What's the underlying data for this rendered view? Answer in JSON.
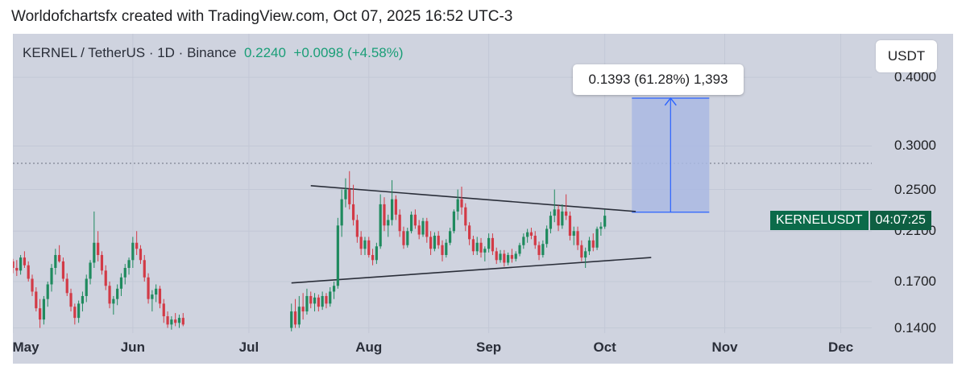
{
  "header": {
    "text": "Worldofchartsfx created with TradingView.com, Oct 07, 2025 16:52 UTC-3"
  },
  "legend": {
    "symbol": "KERNEL / TetherUS · 1D · Binance",
    "last": "0.2240",
    "change": "+0.0098 (+4.58%)"
  },
  "unit": "USDT",
  "measure": {
    "label": "0.1393 (61.28%) 1,393",
    "from": 0.2273,
    "to": 0.3666
  },
  "symbol_badge": {
    "ticker": "KERNELUSDT",
    "countdown": "04:07:25"
  },
  "colors": {
    "up": "#1f8a5e",
    "down": "#d23a46",
    "measure_fill": "#aab8e3",
    "measure_line": "#2962ff",
    "trendline": "#2a2e39",
    "background": "#cfd3df"
  },
  "chart_data": {
    "type": "candlestick",
    "interval": "1D",
    "scale": "log",
    "y_ticks": [
      "0.1400",
      "0.1700",
      "0.2100",
      "0.2500",
      "0.3000",
      "0.4000"
    ],
    "y_tick_values": [
      0.14,
      0.17,
      0.21,
      0.25,
      0.3,
      0.4
    ],
    "x_ticks": [
      "May",
      "Jun",
      "Jul",
      "Aug",
      "Sep",
      "Oct",
      "Nov",
      "Dec"
    ],
    "x_tick_dates": [
      "2025-05-01",
      "2025-06-01",
      "2025-07-01",
      "2025-08-01",
      "2025-09-01",
      "2025-10-01",
      "2025-11-01",
      "2025-12-01"
    ],
    "date_range": [
      "2025-05-01",
      "2025-12-09"
    ],
    "ylim": [
      0.137,
      0.48
    ],
    "dotted_level": 0.279,
    "trendlines": [
      {
        "name": "upper",
        "from": [
          "2025-07-17",
          0.254
        ],
        "to": [
          "2025-10-09",
          0.228
        ]
      },
      {
        "name": "lower",
        "from": [
          "2025-07-12",
          0.169
        ],
        "to": [
          "2025-10-13",
          0.188
        ]
      }
    ],
    "series": [
      {
        "segment": 1,
        "start": "2025-05-01",
        "ohlc": [
          [
            0.185,
            0.187,
            0.176,
            0.18
          ],
          [
            0.18,
            0.186,
            0.174,
            0.178
          ],
          [
            0.178,
            0.19,
            0.175,
            0.188
          ],
          [
            0.188,
            0.193,
            0.18,
            0.182
          ],
          [
            0.182,
            0.185,
            0.17,
            0.172
          ],
          [
            0.172,
            0.175,
            0.16,
            0.163
          ],
          [
            0.163,
            0.166,
            0.15,
            0.152
          ],
          [
            0.152,
            0.158,
            0.14,
            0.145
          ],
          [
            0.145,
            0.16,
            0.142,
            0.158
          ],
          [
            0.158,
            0.17,
            0.153,
            0.168
          ],
          [
            0.168,
            0.183,
            0.163,
            0.18
          ],
          [
            0.18,
            0.195,
            0.175,
            0.19
          ],
          [
            0.19,
            0.198,
            0.184,
            0.185
          ],
          [
            0.185,
            0.188,
            0.17,
            0.172
          ],
          [
            0.172,
            0.176,
            0.16,
            0.162
          ],
          [
            0.162,
            0.165,
            0.15,
            0.153
          ],
          [
            0.153,
            0.155,
            0.142,
            0.146
          ],
          [
            0.146,
            0.157,
            0.143,
            0.155
          ],
          [
            0.155,
            0.163,
            0.15,
            0.16
          ],
          [
            0.16,
            0.175,
            0.156,
            0.172
          ],
          [
            0.172,
            0.186,
            0.168,
            0.184
          ],
          [
            0.184,
            0.228,
            0.18,
            0.2
          ],
          [
            0.2,
            0.21,
            0.185,
            0.19
          ],
          [
            0.19,
            0.193,
            0.175,
            0.178
          ],
          [
            0.178,
            0.182,
            0.164,
            0.167
          ],
          [
            0.167,
            0.17,
            0.152,
            0.155
          ],
          [
            0.155,
            0.16,
            0.148,
            0.158
          ],
          [
            0.158,
            0.168,
            0.154,
            0.165
          ],
          [
            0.165,
            0.176,
            0.16,
            0.173
          ],
          [
            0.173,
            0.183,
            0.168,
            0.18
          ],
          [
            0.18,
            0.188,
            0.175,
            0.186
          ],
          [
            0.186,
            0.205,
            0.18,
            0.2
          ],
          [
            0.2,
            0.21,
            0.19,
            0.195
          ],
          [
            0.195,
            0.198,
            0.183,
            0.186
          ],
          [
            0.186,
            0.19,
            0.17,
            0.173
          ],
          [
            0.173,
            0.176,
            0.155,
            0.158
          ],
          [
            0.158,
            0.164,
            0.15,
            0.161
          ],
          [
            0.161,
            0.168,
            0.156,
            0.165
          ],
          [
            0.165,
            0.167,
            0.152,
            0.155
          ],
          [
            0.155,
            0.158,
            0.143,
            0.147
          ],
          [
            0.147,
            0.15,
            0.14,
            0.142
          ],
          [
            0.142,
            0.147,
            0.139,
            0.145
          ],
          [
            0.145,
            0.149,
            0.141,
            0.143
          ],
          [
            0.143,
            0.148,
            0.14,
            0.146
          ],
          [
            0.146,
            0.149,
            0.141,
            0.142
          ]
        ]
      },
      {
        "segment": 2,
        "start": "2025-07-12",
        "ohlc": [
          [
            0.14,
            0.155,
            0.138,
            0.15
          ],
          [
            0.15,
            0.158,
            0.14,
            0.142
          ],
          [
            0.142,
            0.16,
            0.14,
            0.153
          ],
          [
            0.153,
            0.162,
            0.145,
            0.15
          ],
          [
            0.15,
            0.165,
            0.148,
            0.16
          ],
          [
            0.16,
            0.163,
            0.152,
            0.155
          ],
          [
            0.155,
            0.162,
            0.15,
            0.159
          ],
          [
            0.159,
            0.161,
            0.15,
            0.153
          ],
          [
            0.153,
            0.163,
            0.151,
            0.16
          ],
          [
            0.16,
            0.162,
            0.152,
            0.155
          ],
          [
            0.155,
            0.166,
            0.153,
            0.163
          ],
          [
            0.163,
            0.17,
            0.158,
            0.167
          ],
          [
            0.167,
            0.222,
            0.165,
            0.215
          ],
          [
            0.215,
            0.25,
            0.205,
            0.24
          ],
          [
            0.24,
            0.262,
            0.232,
            0.25
          ],
          [
            0.25,
            0.27,
            0.23,
            0.235
          ],
          [
            0.235,
            0.255,
            0.215,
            0.22
          ],
          [
            0.22,
            0.225,
            0.2,
            0.205
          ],
          [
            0.205,
            0.21,
            0.19,
            0.195
          ],
          [
            0.195,
            0.205,
            0.19,
            0.202
          ],
          [
            0.202,
            0.205,
            0.188,
            0.19
          ],
          [
            0.19,
            0.195,
            0.182,
            0.186
          ],
          [
            0.186,
            0.2,
            0.183,
            0.197
          ],
          [
            0.197,
            0.245,
            0.195,
            0.235
          ],
          [
            0.235,
            0.242,
            0.21,
            0.215
          ],
          [
            0.215,
            0.225,
            0.205,
            0.22
          ],
          [
            0.22,
            0.26,
            0.215,
            0.24
          ],
          [
            0.24,
            0.244,
            0.22,
            0.225
          ],
          [
            0.225,
            0.23,
            0.205,
            0.21
          ],
          [
            0.21,
            0.214,
            0.195,
            0.198
          ],
          [
            0.198,
            0.213,
            0.196,
            0.21
          ],
          [
            0.21,
            0.228,
            0.208,
            0.225
          ],
          [
            0.225,
            0.23,
            0.212,
            0.215
          ],
          [
            0.215,
            0.22,
            0.203,
            0.207
          ],
          [
            0.207,
            0.222,
            0.205,
            0.219
          ],
          [
            0.219,
            0.222,
            0.2,
            0.205
          ],
          [
            0.205,
            0.21,
            0.19,
            0.195
          ],
          [
            0.195,
            0.209,
            0.193,
            0.206
          ],
          [
            0.206,
            0.21,
            0.195,
            0.198
          ],
          [
            0.198,
            0.202,
            0.185,
            0.19
          ],
          [
            0.19,
            0.203,
            0.188,
            0.2
          ],
          [
            0.2,
            0.213,
            0.198,
            0.21
          ],
          [
            0.21,
            0.23,
            0.208,
            0.228
          ],
          [
            0.228,
            0.25,
            0.22,
            0.24
          ],
          [
            0.24,
            0.253,
            0.225,
            0.232
          ],
          [
            0.232,
            0.236,
            0.21,
            0.215
          ],
          [
            0.215,
            0.218,
            0.198,
            0.203
          ],
          [
            0.203,
            0.206,
            0.19,
            0.193
          ],
          [
            0.193,
            0.205,
            0.19,
            0.2
          ],
          [
            0.2,
            0.204,
            0.188,
            0.192
          ],
          [
            0.192,
            0.197,
            0.185,
            0.195
          ],
          [
            0.195,
            0.208,
            0.192,
            0.204
          ],
          [
            0.204,
            0.208,
            0.19,
            0.193
          ],
          [
            0.193,
            0.196,
            0.183,
            0.186
          ],
          [
            0.186,
            0.194,
            0.184,
            0.191
          ],
          [
            0.191,
            0.194,
            0.181,
            0.184
          ],
          [
            0.184,
            0.192,
            0.182,
            0.19
          ],
          [
            0.19,
            0.195,
            0.184,
            0.187
          ],
          [
            0.187,
            0.193,
            0.185,
            0.191
          ],
          [
            0.191,
            0.2,
            0.189,
            0.198
          ],
          [
            0.198,
            0.208,
            0.195,
            0.205
          ],
          [
            0.205,
            0.212,
            0.2,
            0.209
          ],
          [
            0.209,
            0.213,
            0.203,
            0.206
          ],
          [
            0.206,
            0.21,
            0.195,
            0.198
          ],
          [
            0.198,
            0.201,
            0.186,
            0.19
          ],
          [
            0.19,
            0.202,
            0.188,
            0.199
          ],
          [
            0.199,
            0.215,
            0.196,
            0.212
          ],
          [
            0.212,
            0.228,
            0.208,
            0.224
          ],
          [
            0.224,
            0.25,
            0.218,
            0.23
          ],
          [
            0.23,
            0.234,
            0.21,
            0.215
          ],
          [
            0.215,
            0.235,
            0.212,
            0.228
          ],
          [
            0.228,
            0.245,
            0.22,
            0.224
          ],
          [
            0.224,
            0.228,
            0.202,
            0.206
          ],
          [
            0.206,
            0.214,
            0.198,
            0.21
          ],
          [
            0.21,
            0.214,
            0.194,
            0.198
          ],
          [
            0.198,
            0.202,
            0.185,
            0.188
          ],
          [
            0.188,
            0.196,
            0.18,
            0.193
          ],
          [
            0.193,
            0.205,
            0.19,
            0.202
          ],
          [
            0.202,
            0.208,
            0.193,
            0.196
          ],
          [
            0.196,
            0.214,
            0.194,
            0.212
          ],
          [
            0.212,
            0.218,
            0.206,
            0.214
          ],
          [
            0.214,
            0.23,
            0.212,
            0.224
          ]
        ]
      }
    ]
  }
}
